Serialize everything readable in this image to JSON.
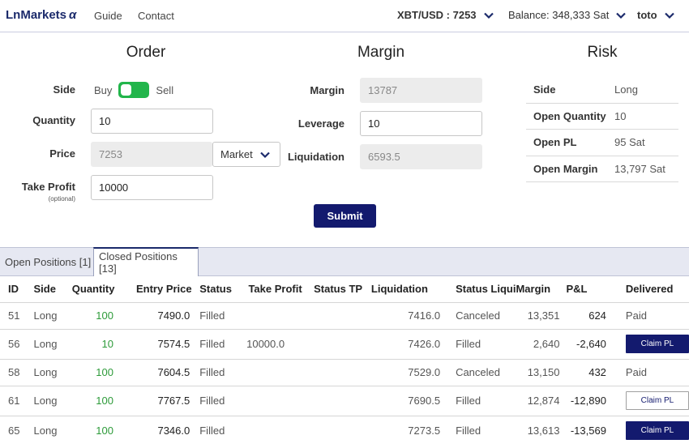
{
  "nav": {
    "brand": "LnMarkets",
    "brand_suffix": "α",
    "links": [
      "Guide",
      "Contact"
    ],
    "ticker": "XBT/USD : 7253",
    "balance": "Balance: 348,333 Sat",
    "user": "toto"
  },
  "order": {
    "title": "Order",
    "side_label": "Side",
    "side_buy": "Buy",
    "side_sell": "Sell",
    "side_toggle": "buy",
    "quantity_label": "Quantity",
    "quantity_value": "10",
    "price_label": "Price",
    "price_value": "7253",
    "price_type": "Market",
    "take_profit_label": "Take Profit",
    "take_profit_sub": "(optional)",
    "take_profit_value": "10000"
  },
  "margin": {
    "title": "Margin",
    "margin_label": "Margin",
    "margin_value": "13787",
    "leverage_label": "Leverage",
    "leverage_value": "10",
    "liquidation_label": "Liquidation",
    "liquidation_value": "6593.5"
  },
  "submit_label": "Submit",
  "risk": {
    "title": "Risk",
    "rows": [
      {
        "k": "Side",
        "v": "Long"
      },
      {
        "k": "Open Quantity",
        "v": "10"
      },
      {
        "k": "Open PL",
        "v": "95 Sat"
      },
      {
        "k": "Open Margin",
        "v": "13,797 Sat"
      }
    ]
  },
  "tabs": [
    "Open Positions [1]",
    "Closed Positions [13]"
  ],
  "active_tab": 1,
  "table": {
    "headers": [
      "ID",
      "Side",
      "Quantity",
      "Entry Price",
      "Status",
      "Take Profit",
      "Status TP",
      "Liquidation",
      "Status Liqui",
      "Margin",
      "P&L",
      "Delivered"
    ],
    "rows": [
      {
        "id": "51",
        "side": "Long",
        "qty": "100",
        "entry": "7490.0",
        "status": "Filled",
        "tp": "",
        "status_tp": "",
        "liq": "7416.0",
        "status_liq": "Canceled",
        "margin": "13,351",
        "pl": "624",
        "delivered": "Paid",
        "claim": ""
      },
      {
        "id": "56",
        "side": "Long",
        "qty": "10",
        "entry": "7574.5",
        "status": "Filled",
        "tp": "10000.0",
        "status_tp": "",
        "liq": "7426.0",
        "status_liq": "Filled",
        "margin": "2,640",
        "pl": "-2,640",
        "delivered": "",
        "claim": "filled"
      },
      {
        "id": "58",
        "side": "Long",
        "qty": "100",
        "entry": "7604.5",
        "status": "Filled",
        "tp": "",
        "status_tp": "",
        "liq": "7529.0",
        "status_liq": "Canceled",
        "margin": "13,150",
        "pl": "432",
        "delivered": "Paid",
        "claim": ""
      },
      {
        "id": "61",
        "side": "Long",
        "qty": "100",
        "entry": "7767.5",
        "status": "Filled",
        "tp": "",
        "status_tp": "",
        "liq": "7690.5",
        "status_liq": "Filled",
        "margin": "12,874",
        "pl": "-12,890",
        "delivered": "",
        "claim": "outline"
      },
      {
        "id": "65",
        "side": "Long",
        "qty": "100",
        "entry": "7346.0",
        "status": "Filled",
        "tp": "",
        "status_tp": "",
        "liq": "7273.5",
        "status_liq": "Filled",
        "margin": "13,613",
        "pl": "-13,569",
        "delivered": "",
        "claim": "filled"
      }
    ],
    "claim_label": "Claim PL"
  },
  "colors": {
    "brand": "#1b2a6b",
    "submit": "#131a6e",
    "toggle": "#22b54b",
    "quantity_green": "#2e9b3a"
  }
}
